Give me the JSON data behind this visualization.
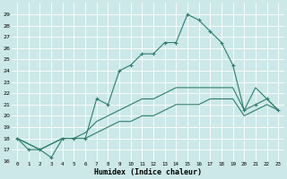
{
  "xlabel": "Humidex (Indice chaleur)",
  "xlim": [
    -0.5,
    23.5
  ],
  "ylim": [
    16,
    30
  ],
  "yticks": [
    16,
    17,
    18,
    19,
    20,
    21,
    22,
    23,
    24,
    25,
    26,
    27,
    28,
    29
  ],
  "xticks": [
    0,
    1,
    2,
    3,
    4,
    5,
    6,
    7,
    8,
    9,
    10,
    11,
    12,
    13,
    14,
    15,
    16,
    17,
    18,
    19,
    20,
    21,
    22,
    23
  ],
  "background_color": "#cce8e8",
  "grid_color": "#ffffff",
  "line_color": "#2e7d6e",
  "line1_x": [
    0,
    1,
    2,
    3,
    4,
    5,
    6,
    7,
    8,
    9,
    10,
    11,
    12,
    13,
    14,
    15,
    16,
    17,
    18,
    19,
    20,
    21,
    22,
    23
  ],
  "line1_y": [
    18,
    17,
    17,
    16.3,
    18,
    18,
    18,
    21.5,
    21,
    24,
    24.5,
    25.5,
    25.5,
    26.5,
    26.5,
    29,
    28.5,
    27.5,
    26.5,
    24.5,
    20.5,
    21,
    21.5,
    20.5
  ],
  "line2_x": [
    0,
    2,
    4,
    5,
    6,
    7,
    8,
    9,
    10,
    11,
    12,
    13,
    14,
    15,
    16,
    17,
    18,
    19,
    20,
    21,
    22,
    23
  ],
  "line2_y": [
    18,
    17,
    18,
    18,
    18.5,
    19.5,
    20,
    20.5,
    21,
    21.5,
    21.5,
    22,
    22.5,
    22.5,
    22.5,
    22.5,
    22.5,
    22.5,
    20.5,
    22.5,
    21.5,
    20.5
  ],
  "line3_x": [
    0,
    2,
    4,
    5,
    6,
    7,
    8,
    9,
    10,
    11,
    12,
    13,
    14,
    15,
    16,
    17,
    18,
    19,
    20,
    21,
    22,
    23
  ],
  "line3_y": [
    18,
    17,
    18,
    18,
    18,
    18.5,
    19,
    19.5,
    19.5,
    20,
    20,
    20.5,
    21,
    21,
    21,
    21.5,
    21.5,
    21.5,
    20,
    20.5,
    21,
    20.5
  ]
}
